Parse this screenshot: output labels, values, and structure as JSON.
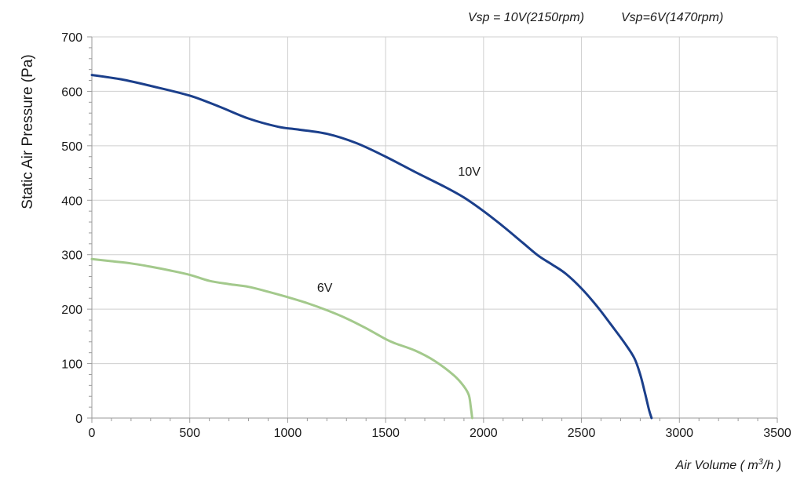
{
  "chart_data": {
    "type": "line",
    "annotation_top": [
      "Vsp = 10V(2150rpm)",
      "Vsp=6V(1470rpm)"
    ],
    "xlabel_parts": [
      "Air Volume ( m",
      "3",
      "/h )"
    ],
    "ylabel": "Static Air Pressure  (Pa)",
    "xlim": [
      0,
      3500
    ],
    "ylim": [
      0,
      700
    ],
    "xticks": [
      0,
      500,
      1000,
      1500,
      2000,
      2500,
      3000,
      3500
    ],
    "yticks": [
      0,
      100,
      200,
      300,
      400,
      500,
      600,
      700
    ],
    "x_minor_step": 100,
    "y_minor_step": 20,
    "grid": true,
    "series": [
      {
        "name": "10V",
        "color": "#1b3f8b",
        "label_at": [
          1870,
          445
        ],
        "points": [
          [
            0,
            630
          ],
          [
            150,
            622
          ],
          [
            300,
            610
          ],
          [
            500,
            592
          ],
          [
            650,
            572
          ],
          [
            800,
            550
          ],
          [
            950,
            535
          ],
          [
            1050,
            530
          ],
          [
            1200,
            522
          ],
          [
            1350,
            505
          ],
          [
            1500,
            480
          ],
          [
            1650,
            452
          ],
          [
            1800,
            425
          ],
          [
            1900,
            405
          ],
          [
            2000,
            380
          ],
          [
            2100,
            352
          ],
          [
            2200,
            322
          ],
          [
            2280,
            298
          ],
          [
            2350,
            282
          ],
          [
            2420,
            265
          ],
          [
            2500,
            238
          ],
          [
            2580,
            205
          ],
          [
            2650,
            172
          ],
          [
            2720,
            138
          ],
          [
            2770,
            110
          ],
          [
            2800,
            80
          ],
          [
            2825,
            45
          ],
          [
            2845,
            15
          ],
          [
            2858,
            0
          ]
        ]
      },
      {
        "name": "6V",
        "color": "#a3c98c",
        "label_at": [
          1150,
          232
        ],
        "points": [
          [
            0,
            292
          ],
          [
            100,
            288
          ],
          [
            200,
            284
          ],
          [
            300,
            278
          ],
          [
            400,
            271
          ],
          [
            500,
            263
          ],
          [
            600,
            252
          ],
          [
            700,
            246
          ],
          [
            800,
            241
          ],
          [
            900,
            232
          ],
          [
            1000,
            222
          ],
          [
            1100,
            211
          ],
          [
            1200,
            198
          ],
          [
            1300,
            183
          ],
          [
            1400,
            165
          ],
          [
            1500,
            145
          ],
          [
            1550,
            137
          ],
          [
            1650,
            124
          ],
          [
            1750,
            105
          ],
          [
            1850,
            78
          ],
          [
            1900,
            58
          ],
          [
            1925,
            42
          ],
          [
            1935,
            20
          ],
          [
            1942,
            0
          ]
        ]
      }
    ]
  }
}
